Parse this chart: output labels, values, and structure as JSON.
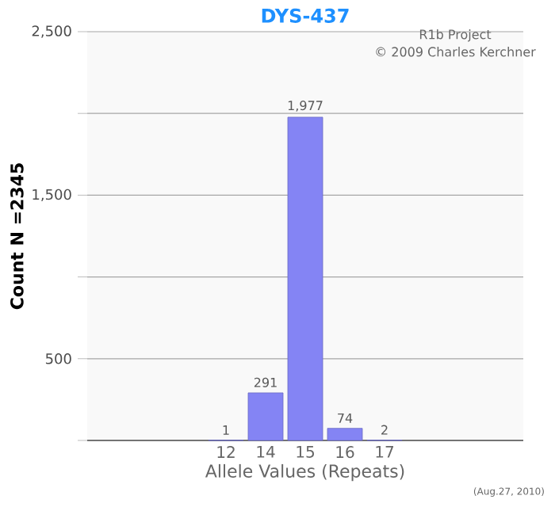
{
  "chart_data": {
    "type": "bar",
    "title": "DYS-437",
    "xlabel": "Allele Values (Repeats)",
    "ylabel": "Count N =2345",
    "categories": [
      null,
      null,
      null,
      "12",
      "14",
      "15",
      "16",
      "17",
      null,
      null,
      null
    ],
    "values": [
      null,
      null,
      null,
      1,
      291,
      1977,
      74,
      2,
      null,
      null,
      null
    ],
    "value_labels": [
      null,
      null,
      null,
      "1",
      "291",
      "1,977",
      "74",
      "2",
      null,
      null,
      null
    ],
    "color": "#8484f4",
    "ylim": [
      0,
      2500
    ],
    "yticks": [
      {
        "value": 0,
        "label": null
      },
      500,
      {
        "value": 1000,
        "label": null
      },
      {
        "value": 1500,
        "label": "1,500"
      },
      {
        "value": 2000,
        "label": null
      },
      {
        "value": 2500,
        "label": "2,500"
      }
    ],
    "grid": "y",
    "annotations": [
      "R1b Project",
      "© 2009 Charles Kerchner",
      "(Aug.27, 2010)"
    ]
  }
}
